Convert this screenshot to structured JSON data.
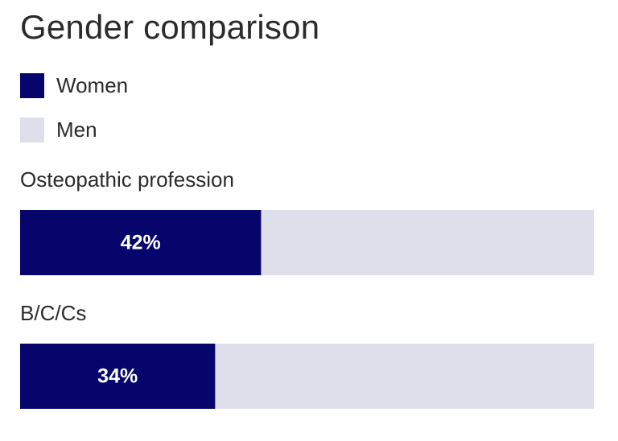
{
  "chart_data": {
    "type": "bar",
    "orientation": "horizontal",
    "stacked": true,
    "title": "Gender comparison",
    "legend_position": "top-left",
    "xlim": [
      0,
      100
    ],
    "categories": [
      "Osteopathic profession",
      "B/C/Cs"
    ],
    "series": [
      {
        "name": "Women",
        "color": "#05056b",
        "values": [
          42,
          34
        ],
        "labels": [
          "42%",
          "34%"
        ]
      },
      {
        "name": "Men",
        "color": "#dedfeb",
        "values": [
          58,
          66
        ]
      }
    ]
  }
}
